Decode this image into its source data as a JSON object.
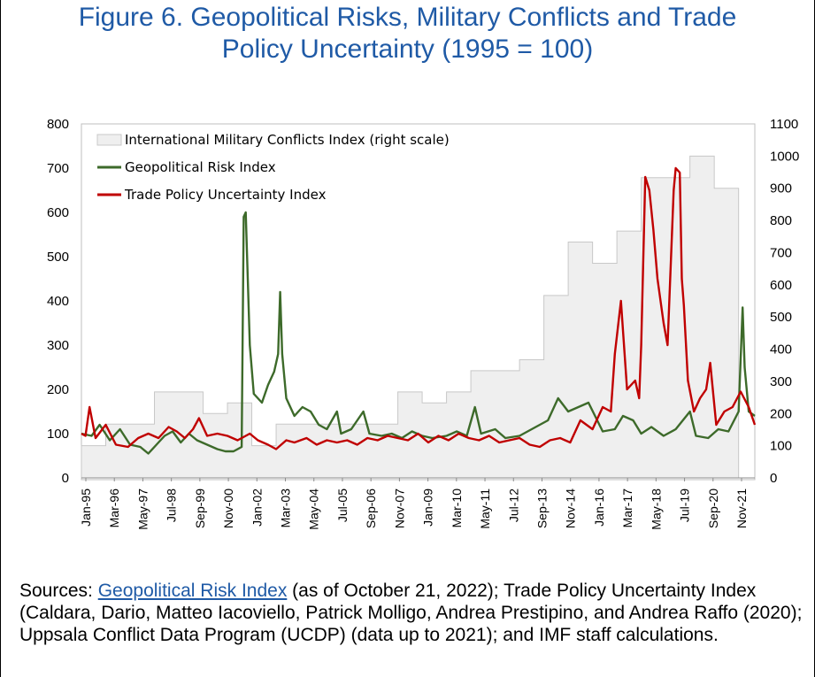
{
  "title": {
    "line1": "Figure 6. Geopolitical Risks, Military Conflicts and Trade",
    "line2": "Policy Uncertainty (1995 = 100)"
  },
  "sources": {
    "prefix": "Sources: ",
    "link": "Geopolitical Risk Index",
    "rest": " (as of October 21, 2022); Trade Policy Uncertainty Index (Caldara, Dario, Matteo Iacoviello, Patrick Molligo, Andrea Prestipino, and Andrea Raffo (2020); Uppsala Conflict Data Program (UCDP) (data up to 2021); and IMF staff calculations."
  },
  "colors": {
    "title": "#1f5aa6",
    "gpr": "#3d6a2a",
    "tpu": "#c00000",
    "conflicts_fill": "#efefef",
    "conflicts_edge": "#c8c8c8"
  },
  "chart_data": {
    "type": "line",
    "x_ticks": [
      "Jan-95",
      "Mar-96",
      "May-97",
      "Jul-98",
      "Sep-99",
      "Nov-00",
      "Jan-02",
      "Mar-03",
      "May-04",
      "Jul-05",
      "Sep-06",
      "Nov-07",
      "Jan-09",
      "Mar-10",
      "May-11",
      "Jul-12",
      "Sep-13",
      "Nov-14",
      "Jan-16",
      "Mar-17",
      "May-18",
      "Jul-19",
      "Sep-20",
      "Nov-21"
    ],
    "x_start": "1995-01",
    "x_end": "2022-09",
    "y_left": {
      "ticks": [
        0,
        100,
        200,
        300,
        400,
        500,
        600,
        700,
        800
      ],
      "range": [
        0,
        800
      ]
    },
    "y_right": {
      "ticks": [
        0,
        100,
        200,
        300,
        400,
        500,
        600,
        700,
        800,
        900,
        1000,
        1100
      ],
      "range": [
        0,
        1100
      ]
    },
    "legend": {
      "position": "top-left",
      "items": [
        {
          "key": "conflicts",
          "label": "International Military Conflicts Index (right scale)"
        },
        {
          "key": "gpr",
          "label": "Geopolitical Risk Index"
        },
        {
          "key": "tpu",
          "label": "Trade Policy Uncertainty Index"
        }
      ]
    },
    "series": [
      {
        "key": "conflicts",
        "name": "International Military Conflicts Index (right scale)",
        "type": "area",
        "axis": "right",
        "points": [
          [
            "1995-01",
            100
          ],
          [
            "1996-01",
            167
          ],
          [
            "1997-01",
            167
          ],
          [
            "1998-01",
            267
          ],
          [
            "1999-01",
            267
          ],
          [
            "2000-01",
            200
          ],
          [
            "2001-01",
            233
          ],
          [
            "2002-01",
            100
          ],
          [
            "2003-01",
            167
          ],
          [
            "2004-01",
            167
          ],
          [
            "2005-01",
            167
          ],
          [
            "2006-01",
            167
          ],
          [
            "2007-01",
            167
          ],
          [
            "2008-01",
            267
          ],
          [
            "2009-01",
            233
          ],
          [
            "2010-01",
            267
          ],
          [
            "2011-01",
            333
          ],
          [
            "2012-01",
            333
          ],
          [
            "2013-01",
            367
          ],
          [
            "2014-01",
            567
          ],
          [
            "2015-01",
            733
          ],
          [
            "2016-01",
            667
          ],
          [
            "2017-01",
            767
          ],
          [
            "2018-01",
            933
          ],
          [
            "2019-01",
            933
          ],
          [
            "2020-01",
            1000
          ],
          [
            "2021-01",
            900
          ],
          [
            "2022-01",
            0
          ]
        ]
      },
      {
        "key": "gpr",
        "name": "Geopolitical Risk Index",
        "axis": "left",
        "points": [
          [
            "1995-01",
            100
          ],
          [
            "1995-06",
            95
          ],
          [
            "1995-10",
            120
          ],
          [
            "1996-03",
            85
          ],
          [
            "1996-08",
            110
          ],
          [
            "1997-01",
            75
          ],
          [
            "1997-06",
            70
          ],
          [
            "1997-10",
            55
          ],
          [
            "1998-02",
            75
          ],
          [
            "1998-06",
            95
          ],
          [
            "1998-10",
            105
          ],
          [
            "1999-02",
            80
          ],
          [
            "1999-06",
            100
          ],
          [
            "1999-10",
            85
          ],
          [
            "2000-03",
            75
          ],
          [
            "2000-08",
            65
          ],
          [
            "2000-12",
            60
          ],
          [
            "2001-04",
            60
          ],
          [
            "2001-08",
            70
          ],
          [
            "2001-09",
            590
          ],
          [
            "2001-10",
            600
          ],
          [
            "2001-11",
            450
          ],
          [
            "2001-12",
            300
          ],
          [
            "2002-02",
            190
          ],
          [
            "2002-06",
            170
          ],
          [
            "2002-09",
            210
          ],
          [
            "2002-12",
            240
          ],
          [
            "2003-02",
            280
          ],
          [
            "2003-03",
            420
          ],
          [
            "2003-04",
            280
          ],
          [
            "2003-06",
            180
          ],
          [
            "2003-10",
            140
          ],
          [
            "2004-02",
            160
          ],
          [
            "2004-06",
            150
          ],
          [
            "2004-10",
            120
          ],
          [
            "2005-02",
            110
          ],
          [
            "2005-07",
            150
          ],
          [
            "2005-09",
            100
          ],
          [
            "2006-02",
            110
          ],
          [
            "2006-08",
            150
          ],
          [
            "2006-11",
            100
          ],
          [
            "2007-05",
            95
          ],
          [
            "2007-10",
            100
          ],
          [
            "2008-03",
            90
          ],
          [
            "2008-08",
            105
          ],
          [
            "2009-01",
            95
          ],
          [
            "2009-06",
            90
          ],
          [
            "2010-01",
            95
          ],
          [
            "2010-06",
            105
          ],
          [
            "2010-11",
            95
          ],
          [
            "2011-03",
            160
          ],
          [
            "2011-06",
            100
          ],
          [
            "2012-01",
            110
          ],
          [
            "2012-06",
            90
          ],
          [
            "2013-01",
            95
          ],
          [
            "2013-09",
            115
          ],
          [
            "2014-03",
            130
          ],
          [
            "2014-08",
            180
          ],
          [
            "2015-01",
            150
          ],
          [
            "2015-11",
            170
          ],
          [
            "2016-06",
            105
          ],
          [
            "2016-12",
            110
          ],
          [
            "2017-04",
            140
          ],
          [
            "2017-09",
            130
          ],
          [
            "2018-01",
            100
          ],
          [
            "2018-06",
            115
          ],
          [
            "2018-12",
            95
          ],
          [
            "2019-06",
            110
          ],
          [
            "2020-01",
            150
          ],
          [
            "2020-04",
            95
          ],
          [
            "2020-10",
            90
          ],
          [
            "2021-03",
            110
          ],
          [
            "2021-08",
            105
          ],
          [
            "2022-01",
            150
          ],
          [
            "2022-03",
            385
          ],
          [
            "2022-04",
            250
          ],
          [
            "2022-06",
            150
          ],
          [
            "2022-09",
            140
          ]
        ]
      },
      {
        "key": "tpu",
        "name": "Trade Policy Uncertainty Index",
        "axis": "left",
        "points": [
          [
            "1995-01",
            100
          ],
          [
            "1995-03",
            95
          ],
          [
            "1995-05",
            160
          ],
          [
            "1995-08",
            90
          ],
          [
            "1996-01",
            120
          ],
          [
            "1996-06",
            75
          ],
          [
            "1996-12",
            70
          ],
          [
            "1997-05",
            90
          ],
          [
            "1997-10",
            100
          ],
          [
            "1998-03",
            90
          ],
          [
            "1998-08",
            115
          ],
          [
            "1998-12",
            105
          ],
          [
            "1999-04",
            90
          ],
          [
            "1999-08",
            110
          ],
          [
            "1999-11",
            135
          ],
          [
            "2000-03",
            95
          ],
          [
            "2000-08",
            100
          ],
          [
            "2001-01",
            95
          ],
          [
            "2001-06",
            85
          ],
          [
            "2001-12",
            100
          ],
          [
            "2002-04",
            85
          ],
          [
            "2002-09",
            75
          ],
          [
            "2003-01",
            65
          ],
          [
            "2003-06",
            85
          ],
          [
            "2003-10",
            80
          ],
          [
            "2004-04",
            90
          ],
          [
            "2004-09",
            75
          ],
          [
            "2005-02",
            85
          ],
          [
            "2005-07",
            80
          ],
          [
            "2005-12",
            85
          ],
          [
            "2006-05",
            75
          ],
          [
            "2006-10",
            90
          ],
          [
            "2007-03",
            85
          ],
          [
            "2007-08",
            95
          ],
          [
            "2008-01",
            90
          ],
          [
            "2008-06",
            85
          ],
          [
            "2008-11",
            100
          ],
          [
            "2009-04",
            80
          ],
          [
            "2009-09",
            95
          ],
          [
            "2010-02",
            85
          ],
          [
            "2010-07",
            100
          ],
          [
            "2010-12",
            90
          ],
          [
            "2011-05",
            85
          ],
          [
            "2011-10",
            95
          ],
          [
            "2012-03",
            80
          ],
          [
            "2012-08",
            85
          ],
          [
            "2013-01",
            90
          ],
          [
            "2013-06",
            75
          ],
          [
            "2013-11",
            70
          ],
          [
            "2014-04",
            85
          ],
          [
            "2014-09",
            90
          ],
          [
            "2015-02",
            80
          ],
          [
            "2015-07",
            130
          ],
          [
            "2016-01",
            110
          ],
          [
            "2016-06",
            160
          ],
          [
            "2016-10",
            150
          ],
          [
            "2016-12",
            280
          ],
          [
            "2017-03",
            400
          ],
          [
            "2017-06",
            200
          ],
          [
            "2017-10",
            220
          ],
          [
            "2017-12",
            180
          ],
          [
            "2018-01",
            300
          ],
          [
            "2018-03",
            680
          ],
          [
            "2018-05",
            650
          ],
          [
            "2018-07",
            560
          ],
          [
            "2018-09",
            450
          ],
          [
            "2018-12",
            350
          ],
          [
            "2019-02",
            300
          ],
          [
            "2019-05",
            650
          ],
          [
            "2019-06",
            700
          ],
          [
            "2019-08",
            690
          ],
          [
            "2019-09",
            450
          ],
          [
            "2019-10",
            390
          ],
          [
            "2019-12",
            220
          ],
          [
            "2020-03",
            150
          ],
          [
            "2020-06",
            180
          ],
          [
            "2020-09",
            200
          ],
          [
            "2020-11",
            260
          ],
          [
            "2021-02",
            120
          ],
          [
            "2021-06",
            150
          ],
          [
            "2021-10",
            160
          ],
          [
            "2022-02",
            195
          ],
          [
            "2022-06",
            160
          ],
          [
            "2022-09",
            120
          ]
        ]
      }
    ]
  }
}
